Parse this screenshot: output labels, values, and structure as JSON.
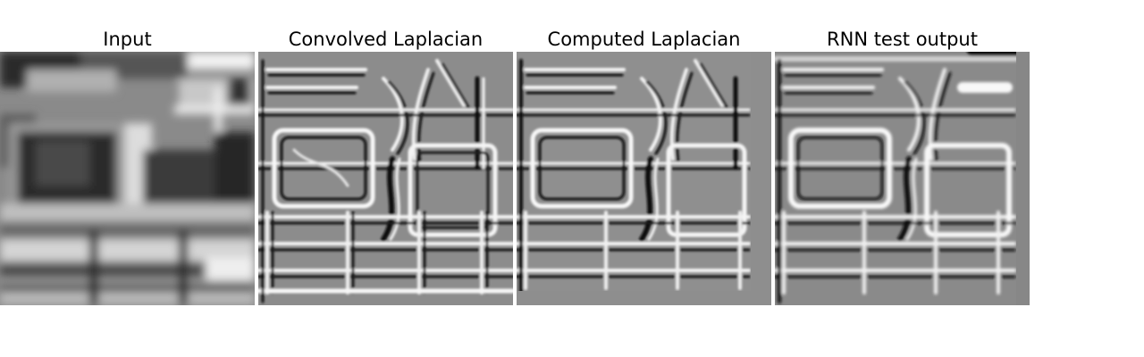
{
  "panels": [
    {
      "title": "Input"
    },
    {
      "title": "Convolved Laplacian"
    },
    {
      "title": "Computed Laplacian"
    },
    {
      "title": "RNN test output"
    }
  ]
}
